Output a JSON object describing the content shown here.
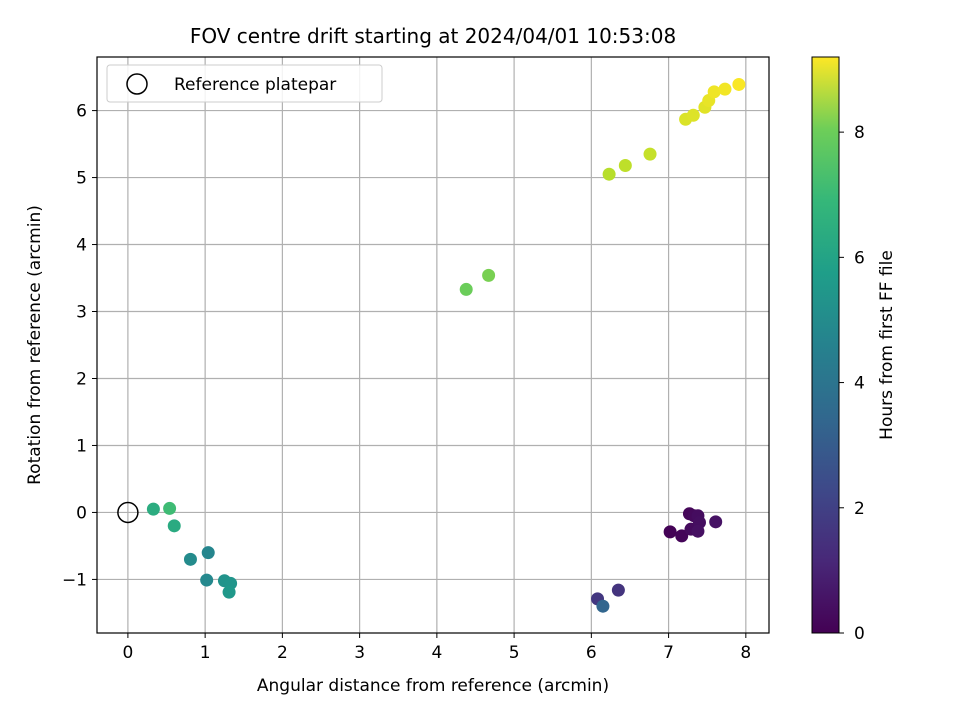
{
  "chart_data": {
    "type": "scatter",
    "title": "FOV centre drift starting at 2024/04/01 10:53:08",
    "xlabel": "Angular distance from reference (arcmin)",
    "ylabel": "Rotation from reference (arcmin)",
    "xlim": [
      -0.4,
      8.3
    ],
    "ylim": [
      -1.8,
      6.8
    ],
    "xticks": [
      "0",
      "1",
      "2",
      "3",
      "4",
      "5",
      "6",
      "7",
      "8"
    ],
    "yticks": [
      "−1",
      "0",
      "1",
      "2",
      "3",
      "4",
      "5",
      "6"
    ],
    "grid": true,
    "legend": {
      "position": "top-left",
      "entries": [
        "Reference platepar"
      ]
    },
    "reference_point": {
      "x": 0,
      "y": 0
    },
    "colorbar": {
      "label": "Hours from first FF file",
      "range": [
        0,
        9.2
      ],
      "ticks": [
        "0",
        "2",
        "4",
        "6",
        "8"
      ],
      "colormap": "viridis"
    },
    "points": [
      {
        "x": 7.02,
        "y": -0.29,
        "h": 0.05
      },
      {
        "x": 7.17,
        "y": -0.35,
        "h": 0.1
      },
      {
        "x": 7.27,
        "y": -0.02,
        "h": 0.15
      },
      {
        "x": 7.33,
        "y": -0.05,
        "h": 0.2
      },
      {
        "x": 7.29,
        "y": -0.25,
        "h": 0.25
      },
      {
        "x": 7.38,
        "y": -0.05,
        "h": 0.3
      },
      {
        "x": 7.4,
        "y": -0.15,
        "h": 0.35
      },
      {
        "x": 7.38,
        "y": -0.28,
        "h": 0.4
      },
      {
        "x": 7.61,
        "y": -0.14,
        "h": 0.45
      },
      {
        "x": 6.35,
        "y": -1.16,
        "h": 1.4
      },
      {
        "x": 6.08,
        "y": -1.29,
        "h": 1.5
      },
      {
        "x": 6.15,
        "y": -1.4,
        "h": 3.0
      },
      {
        "x": 1.04,
        "y": -0.6,
        "h": 4.2
      },
      {
        "x": 1.02,
        "y": -1.01,
        "h": 4.3
      },
      {
        "x": 0.81,
        "y": -0.7,
        "h": 4.4
      },
      {
        "x": 1.25,
        "y": -1.02,
        "h": 4.7
      },
      {
        "x": 1.33,
        "y": -1.06,
        "h": 4.8
      },
      {
        "x": 1.31,
        "y": -1.19,
        "h": 4.9
      },
      {
        "x": 0.6,
        "y": -0.2,
        "h": 5.6
      },
      {
        "x": 0.33,
        "y": 0.05,
        "h": 5.7
      },
      {
        "x": 0.54,
        "y": 0.06,
        "h": 6.3
      },
      {
        "x": 4.38,
        "y": 3.33,
        "h": 7.1
      },
      {
        "x": 4.67,
        "y": 3.54,
        "h": 7.3
      },
      {
        "x": 6.23,
        "y": 5.05,
        "h": 8.2
      },
      {
        "x": 6.44,
        "y": 5.18,
        "h": 8.3
      },
      {
        "x": 6.76,
        "y": 5.35,
        "h": 8.4
      },
      {
        "x": 7.22,
        "y": 5.87,
        "h": 8.7
      },
      {
        "x": 7.32,
        "y": 5.93,
        "h": 8.75
      },
      {
        "x": 7.47,
        "y": 6.05,
        "h": 8.8
      },
      {
        "x": 7.52,
        "y": 6.15,
        "h": 8.9
      },
      {
        "x": 7.59,
        "y": 6.28,
        "h": 9.0
      },
      {
        "x": 7.73,
        "y": 6.32,
        "h": 9.05
      },
      {
        "x": 7.91,
        "y": 6.39,
        "h": 9.15
      }
    ]
  }
}
